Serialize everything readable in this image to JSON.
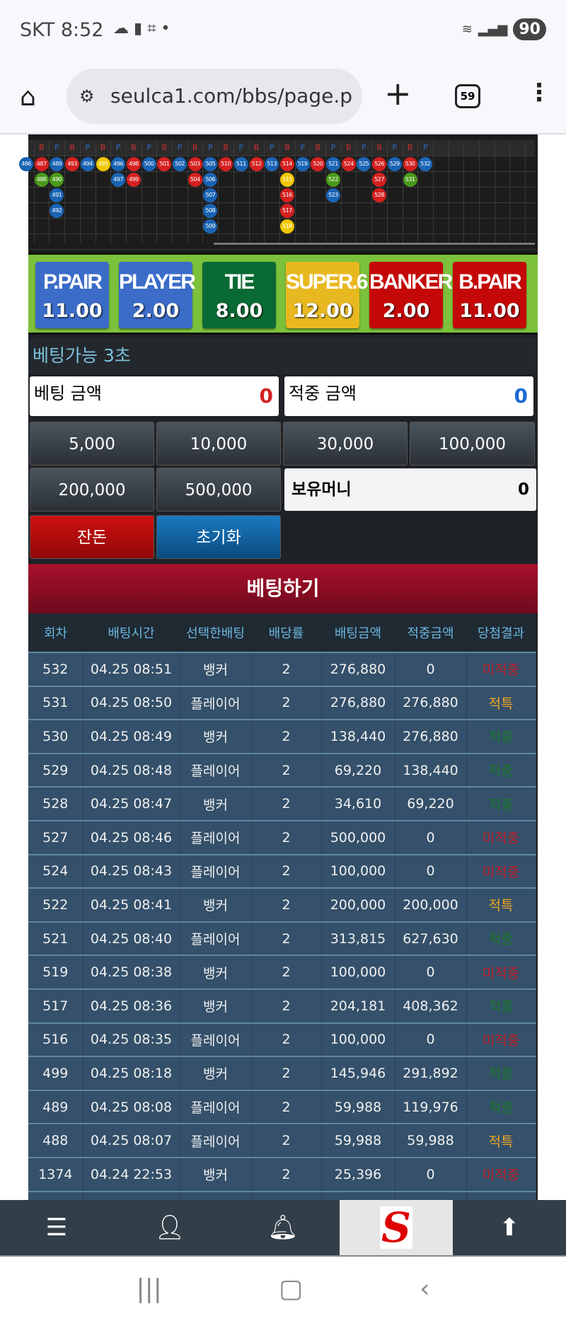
{
  "status": {
    "carrier_time": "SKT 8:52",
    "icons": [
      "cloud-icon",
      "b-app-icon",
      "screenshot-icon",
      "dot-icon"
    ],
    "battery": "90"
  },
  "browser": {
    "url": "seulca1.com/bbs/page.p",
    "tab_count": "59"
  },
  "bead_road": {
    "headers": [
      "",
      "B",
      "P",
      "B",
      "P",
      "B",
      "P",
      "B",
      "P",
      "B",
      "P",
      "B",
      "P",
      "B",
      "P",
      "B",
      "P",
      "B",
      "P",
      "B",
      "P",
      "B",
      "P",
      "B",
      "P",
      "B",
      "P"
    ],
    "colors": {
      "banker": "#d42020",
      "player": "#1a64b4",
      "tie": "#4a9a1a",
      "super6": "#f0c800"
    },
    "columns": [
      [
        [
          "486",
          "player"
        ]
      ],
      [
        [
          "487",
          "banker"
        ],
        [
          "488",
          "tie"
        ]
      ],
      [
        [
          "489",
          "player"
        ],
        [
          "490",
          "tie"
        ],
        [
          "491",
          "player"
        ],
        [
          "492",
          "player"
        ]
      ],
      [
        [
          "493",
          "banker"
        ]
      ],
      [
        [
          "494",
          "player"
        ]
      ],
      [
        [
          "495",
          "super6"
        ]
      ],
      [
        [
          "496",
          "player"
        ],
        [
          "497",
          "player"
        ]
      ],
      [
        [
          "498",
          "banker"
        ],
        [
          "499",
          "banker"
        ]
      ],
      [
        [
          "500",
          "player"
        ]
      ],
      [
        [
          "501",
          "banker"
        ]
      ],
      [
        [
          "502",
          "player"
        ]
      ],
      [
        [
          "503",
          "banker"
        ],
        [
          "504",
          "banker"
        ]
      ],
      [
        [
          "505",
          "player"
        ],
        [
          "506",
          "player"
        ],
        [
          "507",
          "player"
        ],
        [
          "508",
          "player"
        ],
        [
          "509",
          "player"
        ]
      ],
      [
        [
          "510",
          "banker"
        ]
      ],
      [
        [
          "511",
          "player"
        ]
      ],
      [
        [
          "512",
          "banker"
        ]
      ],
      [
        [
          "513",
          "player"
        ]
      ],
      [
        [
          "514",
          "banker"
        ],
        [
          "515",
          "super6"
        ],
        [
          "516",
          "banker"
        ],
        [
          "517",
          "banker"
        ],
        [
          "518",
          "super6"
        ]
      ],
      [
        [
          "519",
          "player"
        ]
      ],
      [
        [
          "520",
          "banker"
        ]
      ],
      [
        [
          "521",
          "player"
        ],
        [
          "522",
          "tie"
        ],
        [
          "523",
          "player"
        ]
      ],
      [
        [
          "524",
          "banker"
        ]
      ],
      [
        [
          "525",
          "player"
        ]
      ],
      [
        [
          "526",
          "banker"
        ],
        [
          "527",
          "banker"
        ],
        [
          "528",
          "banker"
        ]
      ],
      [
        [
          "529",
          "player"
        ]
      ],
      [
        [
          "530",
          "banker"
        ],
        [
          "531",
          "tie"
        ]
      ],
      [
        [
          "532",
          "player"
        ]
      ]
    ]
  },
  "odds": [
    {
      "name": "P.PAIR",
      "value": "11.00",
      "color": "#3a6cc8"
    },
    {
      "name": "PLAYER",
      "value": "2.00",
      "color": "#3a6cc8"
    },
    {
      "name": "TIE",
      "value": "8.00",
      "color": "#0a6a34"
    },
    {
      "name": "SUPER.6",
      "value": "12.00",
      "color": "#e8b820"
    },
    {
      "name": "BANKER",
      "value": "2.00",
      "color": "#c40808"
    },
    {
      "name": "B.PAIR",
      "value": "11.00",
      "color": "#c40808"
    }
  ],
  "timer": "베팅가능 3초",
  "bet_amount": {
    "label": "베팅 금액",
    "value": "0"
  },
  "win_amount": {
    "label": "적중 금액",
    "value": "0"
  },
  "chips": [
    "5,000",
    "10,000",
    "30,000",
    "100,000",
    "200,000",
    "500,000"
  ],
  "holdings": {
    "label": "보유머니",
    "value": "0"
  },
  "change_label": "잔돈",
  "reset_label": "초기화",
  "bet_button": "베팅하기",
  "table": {
    "headers": [
      "회차",
      "배팅시간",
      "선택한배팅",
      "배당률",
      "배팅금액",
      "적중금액",
      "당첨결과"
    ],
    "rows": [
      [
        "532",
        "04.25 08:51",
        "뱅커",
        "2",
        "276,880",
        "0",
        "미적중"
      ],
      [
        "531",
        "04.25 08:50",
        "플레이어",
        "2",
        "276,880",
        "276,880",
        "적특"
      ],
      [
        "530",
        "04.25 08:49",
        "뱅커",
        "2",
        "138,440",
        "276,880",
        "적중"
      ],
      [
        "529",
        "04.25 08:48",
        "플레이어",
        "2",
        "69,220",
        "138,440",
        "적중"
      ],
      [
        "528",
        "04.25 08:47",
        "뱅커",
        "2",
        "34,610",
        "69,220",
        "적중"
      ],
      [
        "527",
        "04.25 08:46",
        "플레이어",
        "2",
        "500,000",
        "0",
        "미적중"
      ],
      [
        "524",
        "04.25 08:43",
        "플레이어",
        "2",
        "100,000",
        "0",
        "미적중"
      ],
      [
        "522",
        "04.25 08:41",
        "뱅커",
        "2",
        "200,000",
        "200,000",
        "적특"
      ],
      [
        "521",
        "04.25 08:40",
        "플레이어",
        "2",
        "313,815",
        "627,630",
        "적중"
      ],
      [
        "519",
        "04.25 08:38",
        "뱅커",
        "2",
        "100,000",
        "0",
        "미적중"
      ],
      [
        "517",
        "04.25 08:36",
        "뱅커",
        "2",
        "204,181",
        "408,362",
        "적중"
      ],
      [
        "516",
        "04.25 08:35",
        "플레이어",
        "2",
        "100,000",
        "0",
        "미적중"
      ],
      [
        "499",
        "04.25 08:18",
        "뱅커",
        "2",
        "145,946",
        "291,892",
        "적중"
      ],
      [
        "489",
        "04.25 08:08",
        "플레이어",
        "2",
        "59,988",
        "119,976",
        "적중"
      ],
      [
        "488",
        "04.25 08:07",
        "플레이어",
        "2",
        "59,988",
        "59,988",
        "적특"
      ],
      [
        "1374",
        "04.24 22:53",
        "뱅커",
        "2",
        "25,396",
        "0",
        "미적중"
      ]
    ]
  },
  "bottom_nav": [
    {
      "icon": "menu-icon"
    },
    {
      "icon": "user-icon"
    },
    {
      "icon": "bell-icon"
    },
    {
      "icon": "s-logo-icon",
      "logo_text": "S"
    },
    {
      "icon": "arrow-up-icon"
    }
  ]
}
